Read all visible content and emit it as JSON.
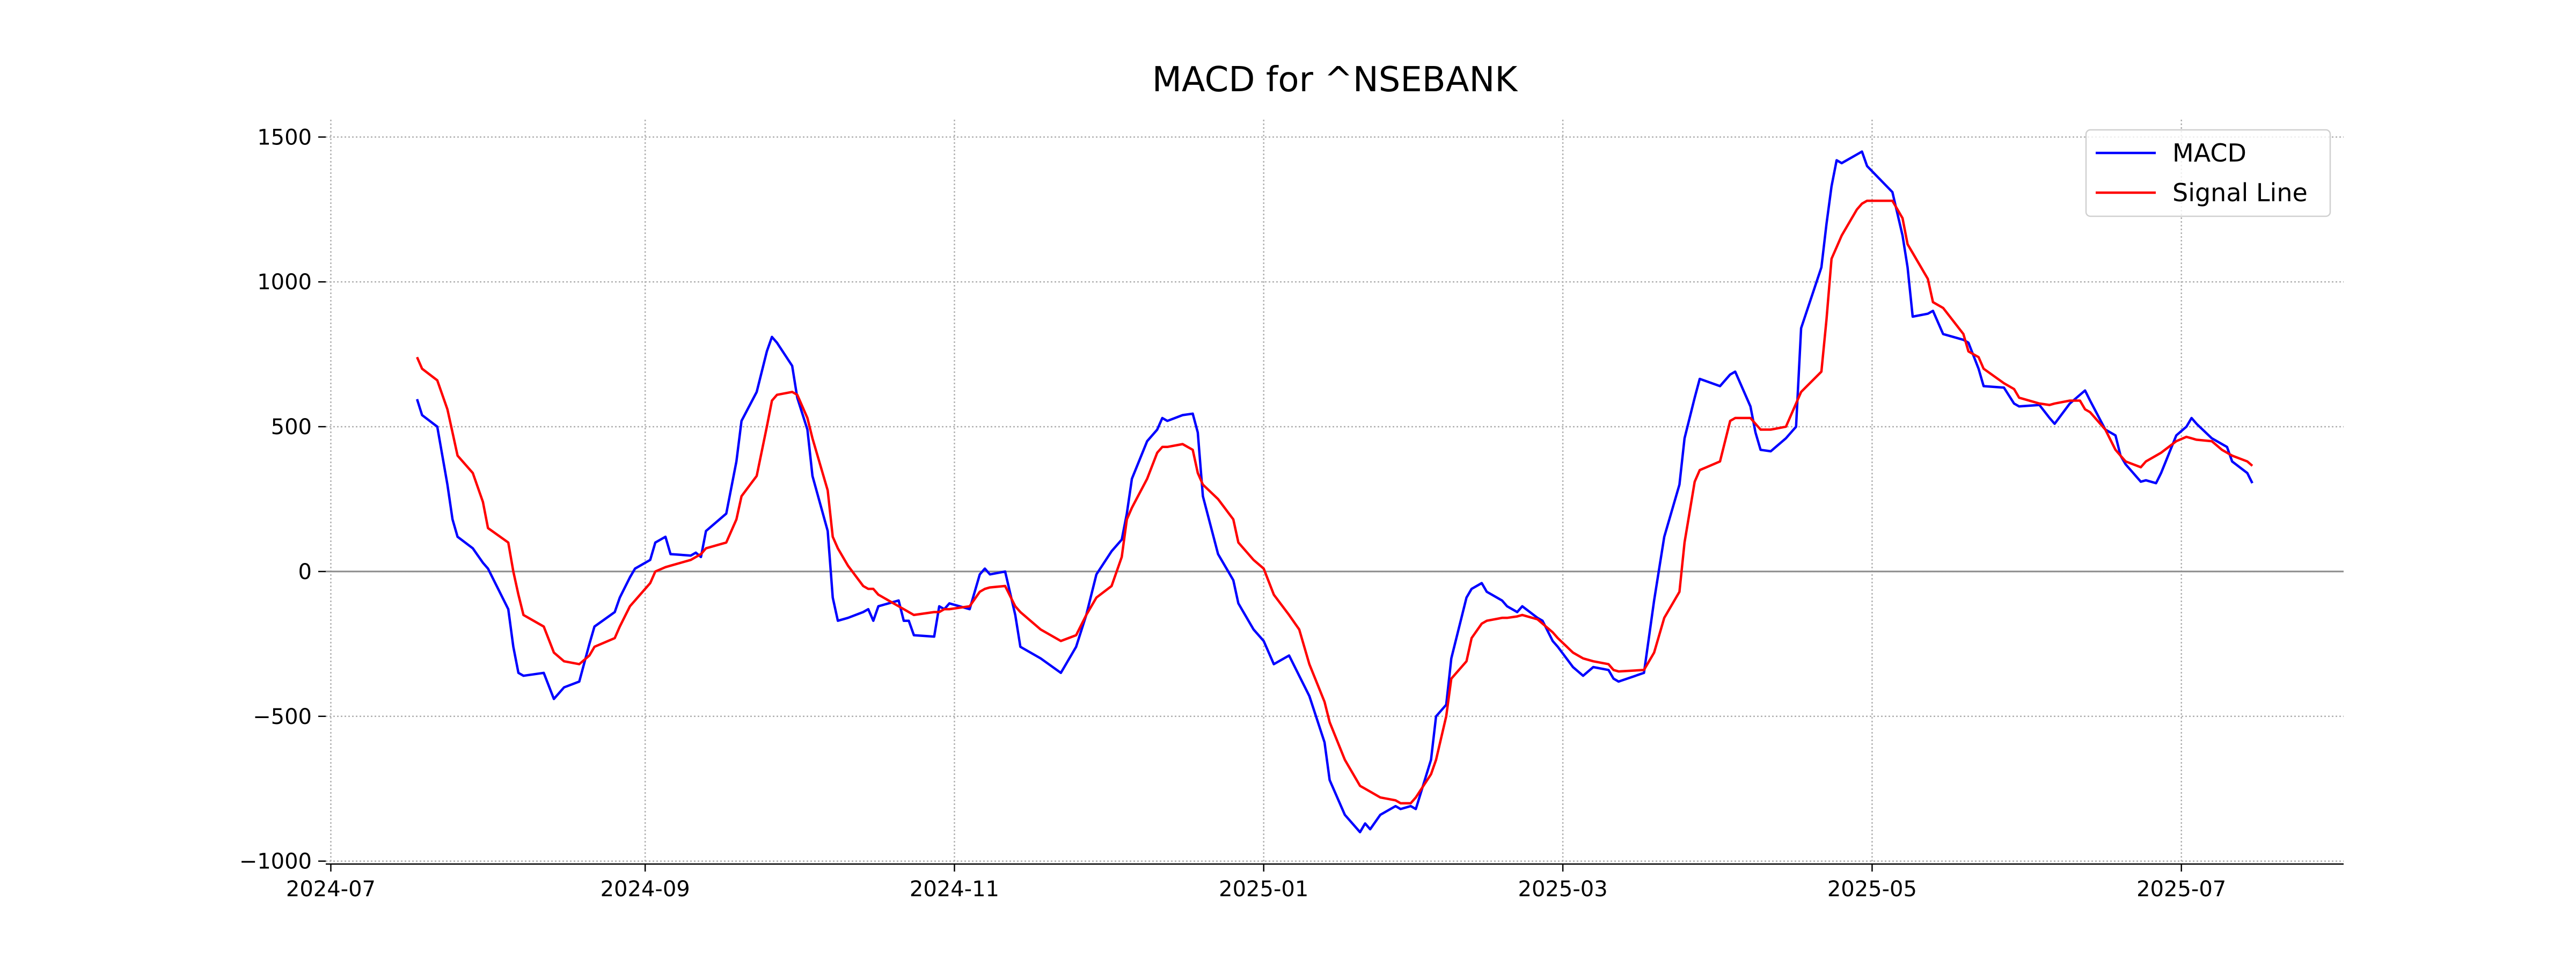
{
  "chart_data": {
    "type": "line",
    "title": "MACD for ^NSEBANK",
    "x": [
      "2024-07-18",
      "2024-07-19",
      "2024-07-22",
      "2024-07-24",
      "2024-07-25",
      "2024-07-26",
      "2024-07-29",
      "2024-07-31",
      "2024-08-01",
      "2024-08-05",
      "2024-08-06",
      "2024-08-07",
      "2024-08-08",
      "2024-08-12",
      "2024-08-14",
      "2024-08-16",
      "2024-08-19",
      "2024-08-21",
      "2024-08-22",
      "2024-08-26",
      "2024-08-27",
      "2024-08-29",
      "2024-08-30",
      "2024-09-02",
      "2024-09-03",
      "2024-09-05",
      "2024-09-06",
      "2024-09-10",
      "2024-09-11",
      "2024-09-12",
      "2024-09-13",
      "2024-09-17",
      "2024-09-19",
      "2024-09-20",
      "2024-09-23",
      "2024-09-25",
      "2024-09-26",
      "2024-09-27",
      "2024-09-30",
      "2024-10-01",
      "2024-10-03",
      "2024-10-04",
      "2024-10-07",
      "2024-10-08",
      "2024-10-09",
      "2024-10-11",
      "2024-10-14",
      "2024-10-15",
      "2024-10-16",
      "2024-10-17",
      "2024-10-21",
      "2024-10-22",
      "2024-10-23",
      "2024-10-24",
      "2024-10-28",
      "2024-10-29",
      "2024-10-30",
      "2024-10-31",
      "2024-11-04",
      "2024-11-06",
      "2024-11-07",
      "2024-11-08",
      "2024-11-11",
      "2024-11-13",
      "2024-11-14",
      "2024-11-18",
      "2024-11-22",
      "2024-11-25",
      "2024-11-27",
      "2024-11-29",
      "2024-12-02",
      "2024-12-04",
      "2024-12-05",
      "2024-12-06",
      "2024-12-09",
      "2024-12-11",
      "2024-12-12",
      "2024-12-13",
      "2024-12-16",
      "2024-12-18",
      "2024-12-19",
      "2024-12-20",
      "2024-12-23",
      "2024-12-26",
      "2024-12-27",
      "2024-12-30",
      "2025-01-01",
      "2025-01-03",
      "2025-01-06",
      "2025-01-08",
      "2025-01-10",
      "2025-01-13",
      "2025-01-14",
      "2025-01-17",
      "2025-01-20",
      "2025-01-21",
      "2025-01-22",
      "2025-01-24",
      "2025-01-27",
      "2025-01-28",
      "2025-01-30",
      "2025-01-31",
      "2025-02-03",
      "2025-02-04",
      "2025-02-06",
      "2025-02-07",
      "2025-02-10",
      "2025-02-11",
      "2025-02-13",
      "2025-02-14",
      "2025-02-17",
      "2025-02-18",
      "2025-02-20",
      "2025-02-21",
      "2025-02-24",
      "2025-02-25",
      "2025-02-27",
      "2025-02-28",
      "2025-03-03",
      "2025-03-05",
      "2025-03-07",
      "2025-03-10",
      "2025-03-11",
      "2025-03-12",
      "2025-03-17",
      "2025-03-19",
      "2025-03-21",
      "2025-03-24",
      "2025-03-25",
      "2025-03-27",
      "2025-03-28",
      "2025-04-01",
      "2025-04-03",
      "2025-04-04",
      "2025-04-07",
      "2025-04-08",
      "2025-04-09",
      "2025-04-11",
      "2025-04-14",
      "2025-04-16",
      "2025-04-17",
      "2025-04-21",
      "2025-04-22",
      "2025-04-23",
      "2025-04-24",
      "2025-04-25",
      "2025-04-28",
      "2025-04-29",
      "2025-04-30",
      "2025-05-05",
      "2025-05-07",
      "2025-05-08",
      "2025-05-09",
      "2025-05-12",
      "2025-05-13",
      "2025-05-15",
      "2025-05-19",
      "2025-05-20",
      "2025-05-22",
      "2025-05-23",
      "2025-05-27",
      "2025-05-29",
      "2025-05-30",
      "2025-06-03",
      "2025-06-05",
      "2025-06-06",
      "2025-06-09",
      "2025-06-11",
      "2025-06-12",
      "2025-06-13",
      "2025-06-16",
      "2025-06-18",
      "2025-06-19",
      "2025-06-20",
      "2025-06-23",
      "2025-06-24",
      "2025-06-26",
      "2025-06-27",
      "2025-06-30",
      "2025-07-02",
      "2025-07-03",
      "2025-07-04",
      "2025-07-07",
      "2025-07-09",
      "2025-07-10",
      "2025-07-11",
      "2025-07-14",
      "2025-07-15"
    ],
    "series": [
      {
        "name": "MACD",
        "color": "#0000ff",
        "values": [
          595,
          540,
          500,
          300,
          180,
          120,
          80,
          30,
          10,
          -130,
          -260,
          -350,
          -360,
          -350,
          -440,
          -400,
          -380,
          -250,
          -190,
          -140,
          -90,
          -20,
          10,
          40,
          100,
          120,
          60,
          55,
          65,
          50,
          140,
          200,
          380,
          520,
          620,
          760,
          810,
          790,
          710,
          600,
          490,
          330,
          140,
          -90,
          -170,
          -160,
          -140,
          -130,
          -170,
          -120,
          -100,
          -170,
          -170,
          -220,
          -225,
          -120,
          -130,
          -110,
          -130,
          -10,
          10,
          -10,
          0,
          -150,
          -260,
          -300,
          -350,
          -260,
          -150,
          -10,
          70,
          110,
          200,
          320,
          450,
          490,
          530,
          520,
          540,
          545,
          480,
          260,
          60,
          -30,
          -110,
          -200,
          -240,
          -320,
          -290,
          -360,
          -430,
          -590,
          -720,
          -840,
          -900,
          -870,
          -890,
          -840,
          -810,
          -820,
          -810,
          -820,
          -650,
          -500,
          -460,
          -300,
          -90,
          -60,
          -40,
          -70,
          -100,
          -120,
          -140,
          -120,
          -160,
          -170,
          -240,
          -260,
          -330,
          -360,
          -330,
          -340,
          -370,
          -380,
          -350,
          -100,
          120,
          300,
          460,
          600,
          665,
          640,
          680,
          690,
          570,
          480,
          420,
          415,
          460,
          500,
          840,
          1050,
          1200,
          1330,
          1420,
          1410,
          1440,
          1450,
          1400,
          1310,
          1160,
          1050,
          880,
          890,
          900,
          820,
          800,
          790,
          700,
          640,
          635,
          580,
          570,
          575,
          530,
          510,
          580,
          610,
          625,
          590,
          490,
          470,
          400,
          370,
          310,
          315,
          305,
          340,
          470,
          500,
          530,
          510,
          460,
          440,
          430,
          380,
          340,
          305
        ]
      },
      {
        "name": "Signal Line",
        "color": "#ff0000",
        "values": [
          740,
          700,
          660,
          560,
          480,
          400,
          340,
          240,
          150,
          100,
          0,
          -80,
          -150,
          -190,
          -280,
          -310,
          -320,
          -290,
          -260,
          -230,
          -190,
          -120,
          -100,
          -40,
          0,
          15,
          20,
          40,
          50,
          60,
          80,
          100,
          180,
          260,
          330,
          500,
          590,
          610,
          620,
          610,
          530,
          460,
          280,
          120,
          80,
          20,
          -50,
          -60,
          -60,
          -80,
          -120,
          -130,
          -140,
          -150,
          -140,
          -140,
          -130,
          -130,
          -120,
          -70,
          -60,
          -55,
          -50,
          -120,
          -140,
          -200,
          -240,
          -220,
          -150,
          -90,
          -50,
          50,
          180,
          220,
          320,
          410,
          430,
          430,
          440,
          420,
          340,
          300,
          250,
          180,
          100,
          40,
          10,
          -80,
          -150,
          -200,
          -320,
          -450,
          -520,
          -650,
          -740,
          -750,
          -760,
          -780,
          -790,
          -800,
          -800,
          -780,
          -700,
          -650,
          -500,
          -370,
          -310,
          -230,
          -180,
          -170,
          -160,
          -160,
          -155,
          -150,
          -165,
          -180,
          -210,
          -230,
          -280,
          -300,
          -310,
          -320,
          -340,
          -345,
          -340,
          -280,
          -160,
          -70,
          100,
          310,
          350,
          380,
          520,
          530,
          530,
          510,
          490,
          490,
          500,
          580,
          620,
          690,
          870,
          1080,
          1120,
          1160,
          1250,
          1270,
          1280,
          1280,
          1220,
          1130,
          1100,
          1010,
          930,
          910,
          820,
          760,
          740,
          700,
          650,
          630,
          600,
          580,
          575,
          580,
          590,
          590,
          560,
          550,
          490,
          420,
          400,
          380,
          360,
          380,
          400,
          410,
          450,
          465,
          460,
          455,
          450,
          420,
          410,
          400,
          380,
          365
        ]
      }
    ],
    "zero_line": 0,
    "xlim": [
      "2024-06-30",
      "2025-08-02"
    ],
    "xticks": [
      {
        "value": "2024-07-01",
        "label": "2024-07"
      },
      {
        "value": "2024-09-01",
        "label": "2024-09"
      },
      {
        "value": "2024-11-01",
        "label": "2024-11"
      },
      {
        "value": "2025-01-01",
        "label": "2025-01"
      },
      {
        "value": "2025-03-01",
        "label": "2025-03"
      },
      {
        "value": "2025-05-01",
        "label": "2025-05"
      },
      {
        "value": "2025-07-01",
        "label": "2025-07"
      }
    ],
    "ylim": [
      -1010,
      1560
    ],
    "yticks": [
      {
        "value": -1000,
        "label": "−1000"
      },
      {
        "value": -500,
        "label": "−500"
      },
      0,
      500,
      1000,
      1500
    ],
    "grid": true,
    "legend": "upper right"
  }
}
